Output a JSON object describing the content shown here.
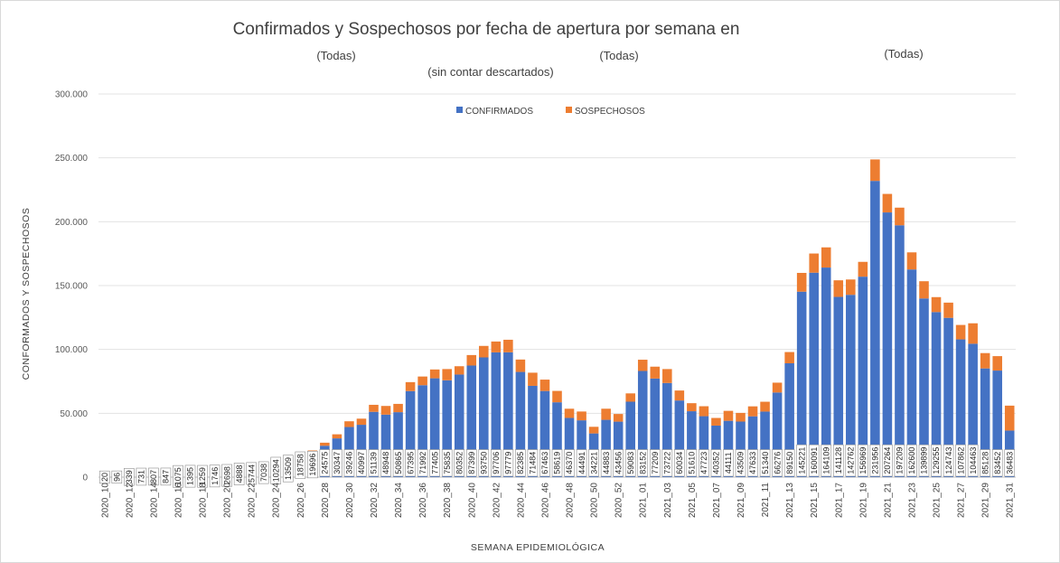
{
  "chart_data": {
    "type": "bar",
    "stacked": true,
    "title": "Confirmados y Sospechosos por fecha de apertura por semana en",
    "filters": [
      "(Todas)",
      "(Todas)",
      "(Todas)"
    ],
    "subtitle": "(sin contar descartados)",
    "xlabel": "SEMANA EPIDEMIOLÓGICA",
    "ylabel": "CONFORMADOS Y SOSPECHOSOS",
    "ylim": [
      0,
      300000
    ],
    "yticks": [
      "0",
      "50.000",
      "100.000",
      "150.000",
      "200.000",
      "250.000",
      "300.000"
    ],
    "grid": true,
    "legend_position": "top",
    "colors": {
      "confirmados": "#4472C4",
      "sospechosos": "#ED7D31"
    },
    "categories": [
      "2020_10",
      "2020_11",
      "2020_12",
      "2020_13",
      "2020_14",
      "2020_15",
      "2020_16",
      "2020_17",
      "2020_18",
      "2020_19",
      "2020_20",
      "2020_21",
      "2020_22",
      "2020_23",
      "2020_24",
      "2020_25",
      "2020_26",
      "2020_27",
      "2020_28",
      "2020_29",
      "2020_30",
      "2020_31",
      "2020_32",
      "2020_33",
      "2020_34",
      "2020_35",
      "2020_36",
      "2020_37",
      "2020_38",
      "2020_39",
      "2020_40",
      "2020_41",
      "2020_42",
      "2020_43",
      "2020_44",
      "2020_45",
      "2020_46",
      "2020_47",
      "2020_48",
      "2020_49",
      "2020_50",
      "2020_51",
      "2020_52",
      "2020_53",
      "2021_01",
      "2021_02",
      "2021_03",
      "2021_04",
      "2021_05",
      "2021_06",
      "2021_07",
      "2021_08",
      "2021_09",
      "2021_10",
      "2021_11",
      "2021_12",
      "2021_13",
      "2021_14",
      "2021_15",
      "2021_16",
      "2021_17",
      "2021_18",
      "2021_19",
      "2021_20",
      "2021_21",
      "2021_22",
      "2021_23",
      "2021_24",
      "2021_25",
      "2021_26",
      "2021_27",
      "2021_28",
      "2021_29",
      "2021_30",
      "2021_31"
    ],
    "xtick_labels": [
      "2020_10",
      "2020_12",
      "2020_14",
      "2020_16",
      "2020_18",
      "2020_20",
      "2020_22",
      "2020_24",
      "2020_26",
      "2020_28",
      "2020_30",
      "2020_32",
      "2020_34",
      "2020_36",
      "2020_38",
      "2020_40",
      "2020_42",
      "2020_44",
      "2020_46",
      "2020_48",
      "2020_50",
      "2020_52",
      "2021_01",
      "2021_03",
      "2021_05",
      "2021_07",
      "2021_09",
      "2021_11",
      "2021_13",
      "2021_15",
      "2021_17",
      "2021_19",
      "2021_21",
      "2021_23",
      "2021_25",
      "2021_27",
      "2021_29",
      "2021_31"
    ],
    "series": [
      {
        "name": "CONFIRMADOS",
        "values": [
          20,
          96,
          339,
          731,
          807,
          847,
          1075,
          1395,
          1259,
          1746,
          2698,
          4888,
          5744,
          7038,
          10294,
          13509,
          18758,
          19696,
          24575,
          30347,
          39246,
          40997,
          51139,
          48948,
          50865,
          67395,
          71992,
          77405,
          75835,
          80352,
          87399,
          93750,
          97706,
          97779,
          82385,
          71484,
          67463,
          58619,
          46370,
          44491,
          34221,
          44883,
          43456,
          59083,
          83152,
          77209,
          73722,
          60034,
          51610,
          47723,
          40352,
          44111,
          43509,
          47633,
          51340,
          66276,
          89150,
          145221,
          160091,
          164109,
          141128,
          142762,
          156969,
          231956,
          207264,
          197209,
          162600,
          139899,
          129255,
          124743,
          107862,
          104463,
          85128,
          83452,
          36483
        ]
      },
      {
        "name": "SOSPECHOSOS",
        "values": [
          0,
          0,
          0,
          0,
          0,
          0,
          0,
          0,
          0,
          0,
          0,
          0,
          0,
          0,
          0,
          0,
          500,
          1200,
          2400,
          3200,
          4500,
          4800,
          5500,
          6800,
          6500,
          7000,
          6800,
          6900,
          8800,
          6500,
          8200,
          9000,
          8500,
          9800,
          9700,
          10300,
          8900,
          8900,
          7200,
          6900,
          5200,
          8700,
          6000,
          6500,
          8800,
          9300,
          10900,
          7800,
          6300,
          7800,
          6000,
          7800,
          6800,
          7800,
          7700,
          7700,
          8800,
          14700,
          15000,
          15800,
          13000,
          12000,
          11600,
          16800,
          14500,
          13800,
          13400,
          13500,
          11700,
          11900,
          11300,
          16000,
          12000,
          11300,
          19500
        ]
      }
    ],
    "data_labels_confirmados": [
      "20",
      "96",
      "339",
      "731",
      "807",
      "847",
      "1075",
      "1395",
      "1259",
      "1746",
      "2698",
      "4888",
      "5744",
      "7038",
      "10294",
      "13509",
      "18758",
      "19696",
      "24575",
      "30347",
      "39246",
      "40997",
      "51139",
      "48948",
      "50865",
      "67395",
      "71992",
      "77405",
      "75835",
      "80352",
      "87399",
      "93750",
      "97706",
      "97779",
      "82385",
      "71484",
      "67463",
      "58619",
      "46370",
      "44491",
      "34221",
      "44883",
      "43456",
      "59083",
      "83152",
      "77209",
      "73722",
      "60034",
      "51610",
      "47723",
      "40352",
      "44111",
      "43509",
      "47633",
      "51340",
      "66276",
      "89150",
      "145221",
      "160091",
      "164109",
      "141128",
      "142762",
      "156969",
      "231956",
      "207264",
      "197209",
      "162600",
      "139899",
      "129255",
      "124743",
      "107862",
      "104463",
      "85128",
      "83452",
      "36483"
    ]
  }
}
